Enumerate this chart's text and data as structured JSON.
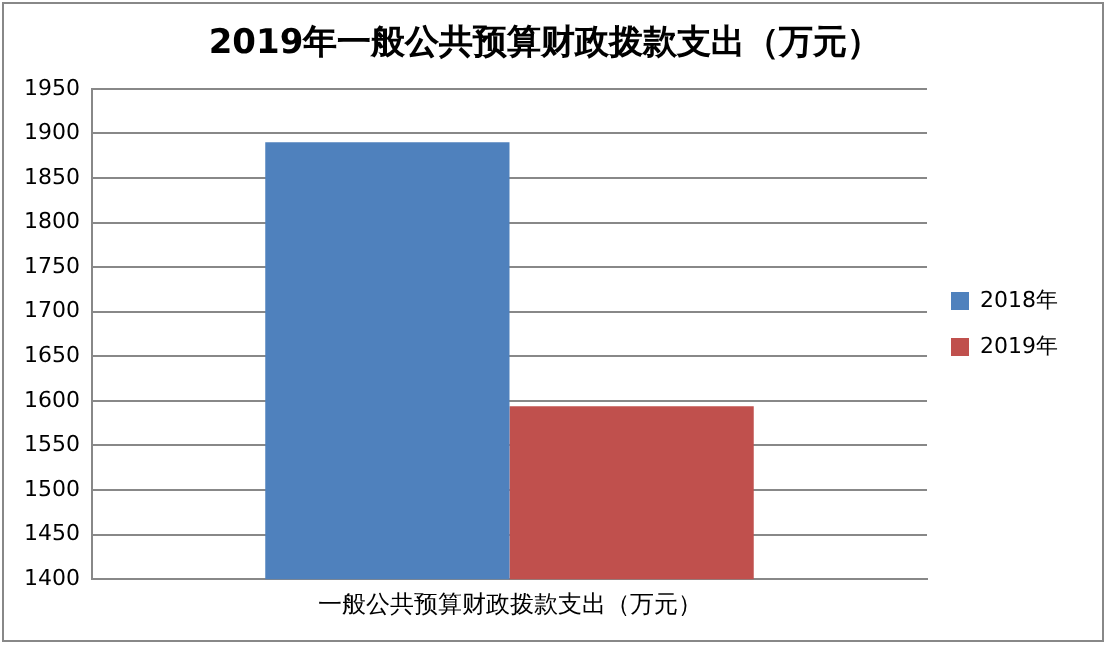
{
  "chart_data": {
    "type": "bar",
    "title": "2019年一般公共预算财政拨款支出（万元）",
    "categories": [
      "一般公共预算财政拨款支出（万元）"
    ],
    "series": [
      {
        "name": "2018年",
        "color": "#4f81bd",
        "values": [
          1890
        ]
      },
      {
        "name": "2019年",
        "color": "#c0504d",
        "values": [
          1594
        ]
      }
    ],
    "ylim": [
      1400,
      1950
    ],
    "yticks": [
      1400,
      1450,
      1500,
      1550,
      1600,
      1650,
      1700,
      1750,
      1800,
      1850,
      1900,
      1950
    ],
    "grid": "y",
    "legend": "right"
  }
}
